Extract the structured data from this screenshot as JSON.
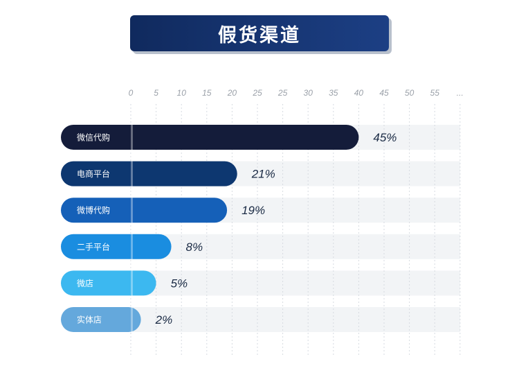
{
  "title": "假货渠道",
  "chart_data": {
    "type": "bar",
    "orientation": "horizontal",
    "title": "假货渠道",
    "xlim": [
      0,
      60
    ],
    "ticks": [
      "0",
      "5",
      "10",
      "15",
      "20",
      "25",
      "25",
      "30",
      "35",
      "40",
      "45",
      "50",
      "55",
      "..."
    ],
    "categories": [
      "微信代购",
      "电商平台",
      "微博代购",
      "二手平台",
      "微店",
      "实体店"
    ],
    "values": [
      45,
      21,
      19,
      8,
      5,
      2
    ],
    "value_labels": [
      "45%",
      "21%",
      "19%",
      "8%",
      "5%",
      "2%"
    ],
    "colors": [
      "#141c3a",
      "#0d3770",
      "#1560b8",
      "#1a8de0",
      "#3cb8f0",
      "#64a8dc"
    ],
    "grid": true
  }
}
